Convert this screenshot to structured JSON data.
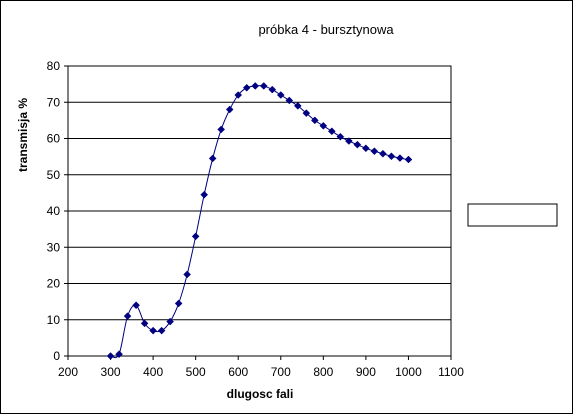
{
  "chart_data": {
    "type": "line",
    "title": "próbka 4 - bursztynowa",
    "xlabel": "dlugosc fali",
    "ylabel": "transmisja %",
    "xlim": [
      200,
      1100
    ],
    "ylim": [
      0,
      80
    ],
    "xticks": [
      "200",
      "300",
      "400",
      "500",
      "600",
      "700",
      "800",
      "900",
      "1000",
      "1100"
    ],
    "yticks": [
      "0",
      "10",
      "20",
      "30",
      "40",
      "50",
      "60",
      "70",
      "80"
    ],
    "grid": true,
    "legend_position": "right",
    "legend_entries": [],
    "colors": {
      "series": "#000080",
      "grid": "#000000",
      "frame": "#000000"
    },
    "series": [
      {
        "x": [
          300,
          320,
          340,
          360,
          380,
          400,
          420,
          440,
          460,
          480,
          500,
          520,
          540,
          560,
          580,
          600,
          620,
          640,
          660,
          680,
          700,
          720,
          740,
          760,
          780,
          800,
          820,
          840,
          860,
          880,
          900,
          920,
          940,
          960,
          980,
          1000
        ],
        "values": [
          0,
          0.5,
          11,
          14,
          9,
          7,
          7,
          9.5,
          14.5,
          22.5,
          33,
          44.5,
          54.5,
          62.5,
          68,
          72,
          74,
          74.5,
          74.5,
          73.5,
          72,
          70.5,
          69,
          67,
          65,
          63.5,
          62,
          60.5,
          59.3,
          58.3,
          57.3,
          56.5,
          55.8,
          55.1,
          54.6,
          54.2
        ]
      }
    ]
  }
}
